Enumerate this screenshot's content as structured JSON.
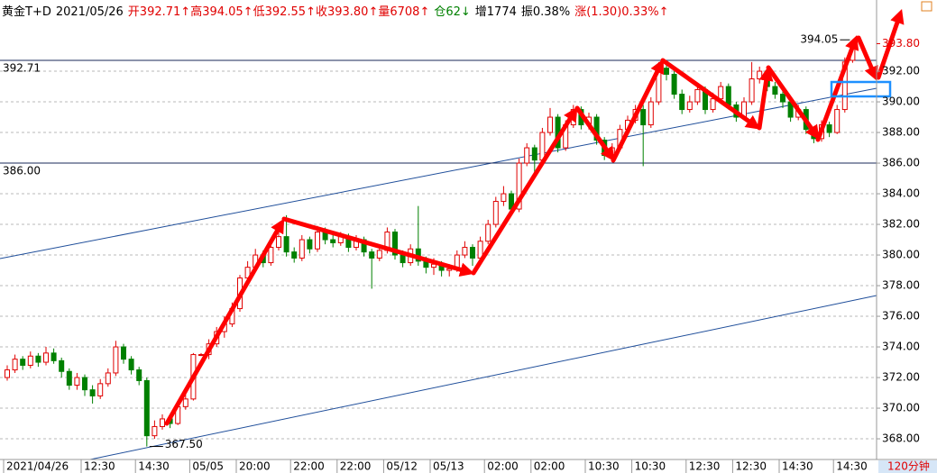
{
  "header": {
    "symbol": "黄金T+D",
    "date": "2021/05/26",
    "open": "开392.71↑",
    "high": "高394.05↑",
    "low": "低392.55↑",
    "close": "收393.80↑",
    "volume": "量6708↑",
    "position": "仓62↓",
    "increase": "增1774",
    "amplitude": "振0.38%",
    "change": "涨(1.30)0.33%↑"
  },
  "period": "120分钟",
  "chart_data": {
    "type": "candlestick",
    "up_color": "#e00000",
    "down_color": "#008000",
    "ylim": [
      366.65,
      396.65
    ],
    "yticks": [
      {
        "value": 368,
        "label": "368.00"
      },
      {
        "value": 370,
        "label": "370.00"
      },
      {
        "value": 372,
        "label": "372.00"
      },
      {
        "value": 374,
        "label": "374.00"
      },
      {
        "value": 376,
        "label": "376.00"
      },
      {
        "value": 378,
        "label": "378.00"
      },
      {
        "value": 380,
        "label": "380.00"
      },
      {
        "value": 382,
        "label": "382.00"
      },
      {
        "value": 384,
        "label": "384.00"
      },
      {
        "value": 386,
        "label": "386.00"
      },
      {
        "value": 388,
        "label": "388.00"
      },
      {
        "value": 390,
        "label": "390.00"
      },
      {
        "value": 392,
        "label": "392.00"
      }
    ],
    "grid": true,
    "hlines": [
      392.71,
      {
        "value": 386,
        "label": "386.00"
      }
    ],
    "max_label": 394.05,
    "min_label": {
      "value": 367.5,
      "label": "367.50"
    },
    "last_price": {
      "value": 393.8,
      "label": "393.80"
    },
    "categories": [
      "2021/04/26",
      null,
      null,
      null,
      null,
      null,
      null,
      null,
      null,
      null,
      "12:30",
      null,
      null,
      null,
      null,
      null,
      null,
      "14:30",
      null,
      null,
      null,
      null,
      null,
      null,
      "05/05",
      null,
      null,
      null,
      null,
      null,
      "20:00",
      null,
      null,
      null,
      null,
      null,
      null,
      "22:00",
      null,
      null,
      null,
      null,
      null,
      "22:00",
      null,
      null,
      null,
      null,
      null,
      "05/12",
      null,
      null,
      null,
      null,
      null,
      "05/13",
      null,
      null,
      null,
      null,
      null,
      null,
      "02:00",
      null,
      null,
      null,
      null,
      null,
      "02:00",
      null,
      null,
      null,
      null,
      null,
      null,
      "10:30",
      null,
      null,
      null,
      null,
      null,
      "10:30",
      null,
      null,
      null,
      null,
      null,
      null,
      "12:30",
      null,
      null,
      null,
      null,
      null,
      "12:30",
      null,
      null,
      null,
      null,
      null,
      "14:30",
      null,
      null,
      null,
      null,
      null,
      null,
      "14:30",
      null,
      null
    ],
    "open": [
      372.0,
      372.5,
      373.2,
      372.8,
      373.4,
      373.0,
      373.6,
      373.1,
      372.4,
      371.5,
      372.0,
      371.2,
      370.8,
      371.6,
      372.3,
      374.0,
      373.2,
      372.5,
      371.8,
      368.2,
      368.8,
      369.3,
      369.0,
      370.1,
      370.6,
      373.5,
      373.5,
      374.2,
      375.0,
      375.5,
      376.5,
      378.5,
      379.2,
      380.0,
      379.5,
      380.5,
      381.2,
      380.2,
      379.8,
      381.0,
      380.4,
      381.5,
      381.0,
      380.8,
      381.2,
      380.5,
      381.0,
      380.2,
      379.8,
      380.3,
      381.5,
      380.0,
      379.5,
      380.4,
      379.6,
      379.2,
      379.4,
      379.0,
      379.1,
      380.0,
      380.5,
      379.8,
      380.9,
      382.0,
      383.5,
      384.0,
      383.0,
      386.0,
      387.0,
      386.2,
      388.0,
      389.0,
      387.0,
      388.5,
      389.5,
      388.5,
      389.0,
      387.5,
      386.5,
      387.0,
      388.2,
      388.8,
      389.5,
      388.5,
      390.0,
      392.2,
      391.8,
      390.5,
      389.5,
      390.0,
      390.8,
      389.5,
      390.2,
      391.0,
      389.8,
      389.0,
      390.0,
      391.5,
      392.0,
      391.0,
      390.5,
      390.0,
      389.0,
      389.5,
      388.2,
      387.6,
      388.5,
      388.0,
      389.5,
      392.71
    ],
    "high": [
      372.8,
      373.5,
      373.4,
      373.7,
      373.6,
      374.0,
      373.9,
      373.3,
      372.6,
      372.3,
      372.2,
      371.5,
      371.9,
      372.6,
      374.4,
      374.2,
      373.4,
      372.7,
      372.0,
      369.2,
      369.6,
      369.5,
      370.5,
      371.0,
      373.6,
      373.6,
      374.5,
      375.3,
      376.0,
      376.9,
      378.7,
      379.6,
      380.4,
      380.3,
      380.8,
      381.6,
      382.6,
      380.5,
      381.3,
      381.2,
      381.9,
      381.8,
      381.4,
      381.5,
      381.4,
      381.3,
      381.2,
      380.4,
      380.6,
      381.8,
      381.7,
      380.3,
      380.7,
      383.2,
      379.9,
      379.8,
      379.6,
      379.4,
      380.3,
      380.9,
      380.7,
      381.2,
      382.3,
      383.8,
      384.5,
      384.2,
      386.3,
      387.3,
      387.2,
      388.3,
      389.6,
      389.2,
      388.8,
      389.8,
      389.7,
      389.3,
      389.2,
      387.7,
      387.3,
      388.5,
      389.1,
      389.8,
      389.8,
      390.3,
      392.6,
      392.4,
      392.0,
      390.8,
      390.4,
      391.1,
      391.0,
      390.6,
      391.3,
      391.2,
      390.0,
      390.3,
      392.6,
      392.3,
      392.2,
      391.3,
      390.8,
      390.2,
      389.8,
      389.7,
      388.4,
      388.8,
      388.7,
      389.8,
      392.9,
      394.05
    ],
    "low": [
      371.8,
      372.3,
      372.5,
      372.6,
      372.7,
      372.8,
      372.9,
      372.0,
      371.2,
      371.2,
      370.8,
      370.3,
      370.6,
      371.4,
      372.1,
      372.9,
      372.2,
      371.5,
      367.5,
      368.0,
      368.6,
      368.7,
      368.9,
      369.9,
      370.5,
      373.4,
      373.2,
      374.0,
      374.6,
      375.3,
      376.3,
      378.2,
      378.9,
      379.2,
      379.3,
      380.3,
      379.9,
      379.5,
      379.6,
      380.1,
      380.2,
      380.7,
      380.5,
      380.6,
      380.2,
      380.3,
      379.9,
      377.8,
      379.6,
      380.1,
      379.7,
      379.2,
      379.3,
      379.3,
      378.8,
      378.7,
      378.6,
      378.6,
      378.9,
      379.8,
      379.3,
      379.6,
      380.7,
      381.8,
      383.2,
      382.7,
      382.8,
      385.8,
      385.0,
      385.9,
      387.8,
      386.7,
      386.8,
      388.3,
      388.2,
      388.2,
      387.2,
      386.2,
      386.3,
      386.8,
      388.0,
      388.6,
      385.8,
      388.3,
      389.8,
      391.4,
      390.2,
      389.2,
      389.3,
      389.8,
      389.2,
      389.3,
      390.0,
      389.5,
      388.7,
      388.8,
      389.8,
      391.2,
      390.7,
      390.2,
      389.6,
      388.7,
      388.8,
      387.9,
      387.3,
      387.4,
      387.7,
      387.9,
      389.3,
      392.55
    ],
    "close": [
      372.5,
      373.2,
      372.8,
      373.4,
      373.0,
      373.6,
      373.1,
      372.4,
      371.5,
      372.0,
      371.2,
      370.8,
      371.6,
      372.3,
      374.0,
      373.2,
      372.5,
      371.8,
      368.2,
      368.8,
      369.3,
      369.0,
      370.1,
      370.6,
      373.5,
      373.5,
      374.2,
      375.0,
      375.5,
      376.5,
      378.5,
      379.2,
      380.0,
      379.5,
      380.5,
      381.2,
      380.2,
      379.8,
      381.0,
      380.4,
      381.5,
      381.0,
      380.8,
      381.2,
      380.5,
      381.0,
      380.2,
      379.8,
      380.3,
      381.5,
      380.0,
      379.5,
      380.4,
      379.6,
      379.2,
      379.4,
      379.0,
      379.1,
      380.0,
      380.5,
      379.8,
      380.9,
      382.0,
      383.5,
      384.0,
      383.0,
      386.0,
      387.0,
      386.2,
      388.0,
      389.0,
      387.0,
      388.5,
      389.5,
      388.5,
      389.0,
      387.5,
      386.5,
      387.0,
      388.2,
      388.8,
      389.5,
      388.5,
      390.0,
      392.2,
      391.8,
      390.5,
      389.5,
      390.0,
      390.8,
      389.5,
      390.2,
      391.0,
      389.8,
      389.0,
      390.0,
      391.5,
      392.0,
      391.0,
      390.5,
      390.0,
      389.0,
      389.5,
      388.2,
      387.6,
      388.5,
      388.0,
      389.5,
      392.6,
      393.8
    ]
  }
}
